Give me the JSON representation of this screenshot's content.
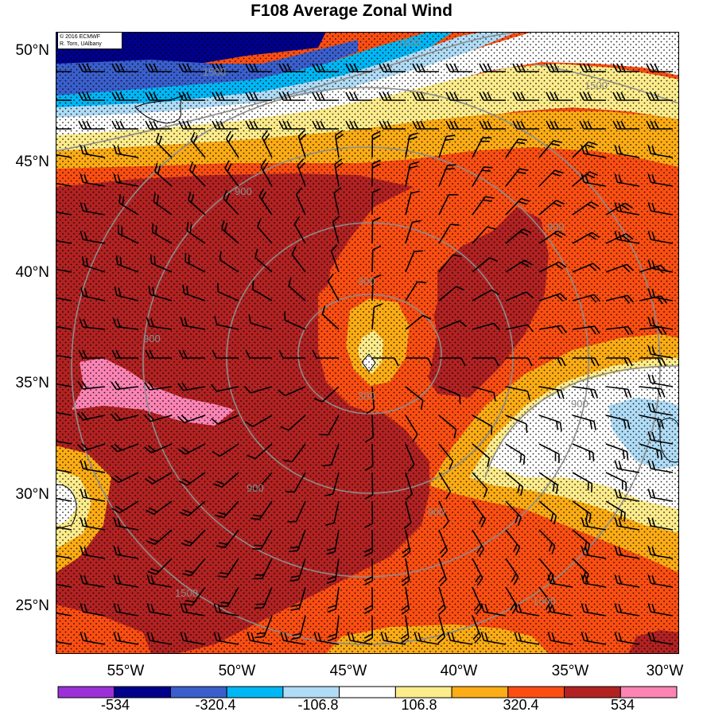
{
  "title": "F108 Average Zonal Wind",
  "credit": {
    "line1": "© 2016 ECMWF",
    "line2": "R. Torn, UAlbany"
  },
  "map": {
    "lat_labels": [
      "50°N",
      "45°N",
      "40°N",
      "35°N",
      "30°N",
      "25°N"
    ],
    "lon_labels": [
      "55°W",
      "50°W",
      "45°W",
      "40°W",
      "35°W",
      "30°W"
    ],
    "lat_range": [
      23,
      51
    ],
    "lon_range": [
      -58,
      -30
    ],
    "field": "zonal wind (shaded), height contours (gray), wind barbs, stippling"
  },
  "contour_labels": [
    "1500",
    "1500",
    "1500",
    "900",
    "900",
    "900",
    "900",
    "900",
    "900",
    "300",
    "300",
    "1500",
    "1500"
  ],
  "colorbar": {
    "tick_labels": [
      "-534",
      "-320.4",
      "-106.8",
      "106.8",
      "320.4",
      "534"
    ],
    "colors": [
      "#9b30d9",
      "#00008b",
      "#3a5fcd",
      "#00b7f5",
      "#b0dcf6",
      "#ffffff",
      "#fcec8c",
      "#fcac14",
      "#fc4e12",
      "#b22222",
      "#fc84b4"
    ]
  },
  "colors": {
    "dark_red": "#b22222",
    "orange_red": "#fc4e12",
    "orange": "#fcac14",
    "pale_yellow": "#fcec8c",
    "white": "#ffffff",
    "light_blue": "#b0dcf6",
    "cyan": "#00b7f5",
    "blue": "#3a5fcd",
    "navy": "#00008b",
    "pink": "#fc84b4"
  }
}
